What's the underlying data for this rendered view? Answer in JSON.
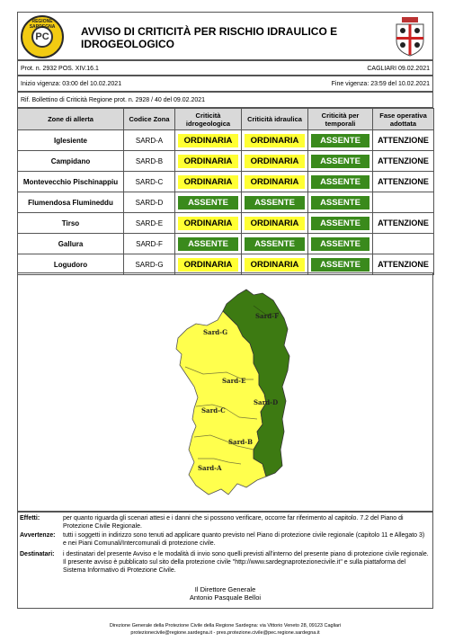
{
  "header": {
    "logo_left_text": "REGIONE SARDEGNA",
    "logo_left_mark": "PC",
    "title": "AVVISO DI CRITICITÀ PER RISCHIO IDRAULICO E IDROGEOLOGICO"
  },
  "meta": {
    "protocol": "Prot. n. 2932 POS. XIV.16.1",
    "place_date": "CAGLIARI 09.02.2021",
    "start": "Inizio vigenza: 03:00 del 10.02.2021",
    "end": "Fine vigenza: 23:59 del 10.02.2021",
    "ref": "Rif. Bollettino di Criticità Regione prot. n. 2928 / 40 del 09.02.2021"
  },
  "table": {
    "headers": [
      "Zone di allerta",
      "Codice Zona",
      "Criticità idrogeologica",
      "Criticità idraulica",
      "Criticità per temporali",
      "Fase operativa adottata"
    ],
    "rows": [
      {
        "zone": "Iglesiente",
        "code": "SARD-A",
        "idro": "ORDINARIA",
        "idra": "ORDINARIA",
        "temp": "ASSENTE",
        "phase": "ATTENZIONE"
      },
      {
        "zone": "Campidano",
        "code": "SARD-B",
        "idro": "ORDINARIA",
        "idra": "ORDINARIA",
        "temp": "ASSENTE",
        "phase": "ATTENZIONE"
      },
      {
        "zone": "Montevecchio Pischinappiu",
        "code": "SARD-C",
        "idro": "ORDINARIA",
        "idra": "ORDINARIA",
        "temp": "ASSENTE",
        "phase": "ATTENZIONE"
      },
      {
        "zone": "Flumendosa Flumineddu",
        "code": "SARD-D",
        "idro": "ASSENTE",
        "idra": "ASSENTE",
        "temp": "ASSENTE",
        "phase": ""
      },
      {
        "zone": "Tirso",
        "code": "SARD-E",
        "idro": "ORDINARIA",
        "idra": "ORDINARIA",
        "temp": "ASSENTE",
        "phase": "ATTENZIONE"
      },
      {
        "zone": "Gallura",
        "code": "SARD-F",
        "idro": "ASSENTE",
        "idra": "ASSENTE",
        "temp": "ASSENTE",
        "phase": ""
      },
      {
        "zone": "Logudoro",
        "code": "SARD-G",
        "idro": "ORDINARIA",
        "idra": "ORDINARIA",
        "temp": "ASSENTE",
        "phase": "ATTENZIONE"
      }
    ]
  },
  "map": {
    "labels": {
      "f": "Sard-F",
      "g": "Sard-G",
      "e": "Sard-E",
      "d": "Sard-D",
      "c": "Sard-C",
      "b": "Sard-B",
      "a": "Sard-A"
    },
    "colors": {
      "ordinaria": "#ffff4d",
      "assente": "#3d7a12"
    }
  },
  "notes": {
    "effetti_k": "Effetti:",
    "effetti_v": "per quanto riguarda gli scenari attesi e i danni che si possono verificare, occorre far riferimento al capitolo. 7.2 del Piano di Protezione Civile Regionale.",
    "avvertenze_k": "Avvertenze:",
    "avvertenze_v": "tutti i soggetti in indirizzo sono tenuti ad applicare quanto previsto nel Piano di protezione civile regionale (capitolo 11 e Allegato 3) e nei Piani Comunali/Intercomunali di protezione civile.",
    "destinatari_k": "Destinatari:",
    "destinatari_v": "i destinatari del presente Avviso e le modalità di invio sono quelli previsti all'interno del presente piano di protezione civile regionale. Il presente avviso è pubblicato sul sito della protezione civile \"http://www.sardegnaprotezionecivile.it\" e sulla piattaforma del Sistema Informativo di Protezione Civile.",
    "sign_role": "Il Direttore Generale",
    "sign_name": "Antonio Pasquale Belloi"
  },
  "footer": {
    "line1": "Direzione Generale della Protezione Civile della Regione Sardegna: via Vittorio Veneto 28, 09123 Cagliari",
    "line2": "protezionecivile@regione.sardegna.it - pres.protezione.civile@pec.regione.sardegna.it"
  }
}
